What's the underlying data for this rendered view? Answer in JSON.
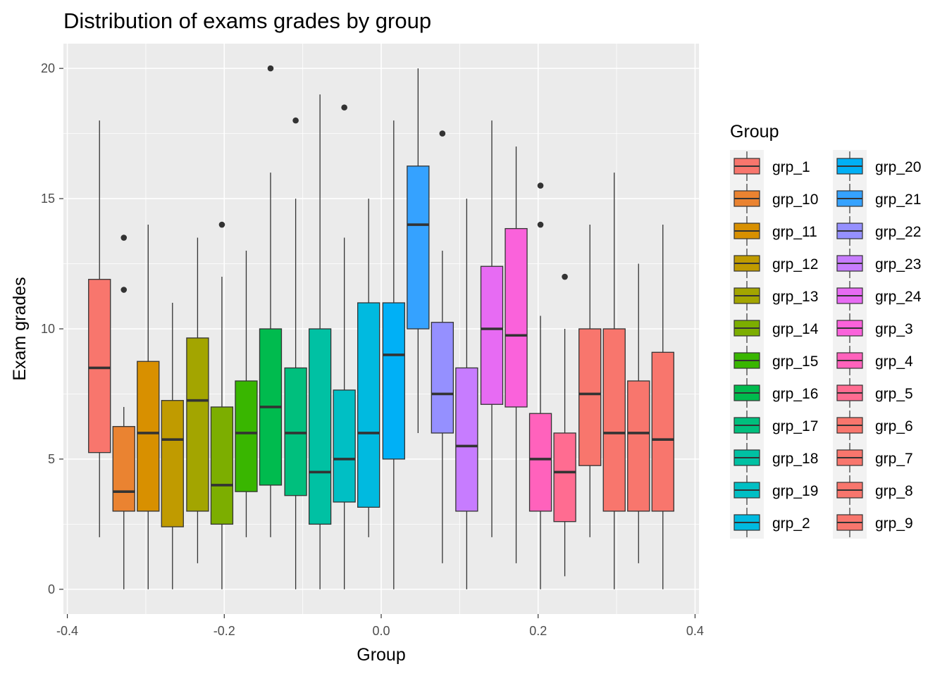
{
  "chart_data": {
    "type": "boxplot",
    "title": "Distribution of exams grades by group",
    "xlabel": "Group",
    "ylabel": "Exam grades",
    "xlim": [
      -0.405,
      0.405
    ],
    "ylim": [
      -0.95,
      20.95
    ],
    "x_ticks": [
      -0.4,
      -0.2,
      0.0,
      0.2,
      0.4
    ],
    "x_tick_labels": [
      "-0.4",
      "-0.2",
      "0.0",
      "0.2",
      "0.4"
    ],
    "y_ticks": [
      0,
      5,
      10,
      15,
      20
    ],
    "y_tick_labels": [
      "0",
      "5",
      "10",
      "15",
      "20"
    ],
    "grid": true,
    "legend": {
      "title": "Group",
      "position": "right",
      "columns": 2
    },
    "series": [
      {
        "name": "grp_1",
        "x": -0.359,
        "min": 2,
        "q1": 5.25,
        "median": 8.5,
        "q3": 11.9,
        "max": 18,
        "outliers": [],
        "color": "#F8766D"
      },
      {
        "name": "grp_10",
        "x": -0.328,
        "min": 0,
        "q1": 3,
        "median": 3.75,
        "q3": 6.25,
        "max": 7,
        "outliers": [
          11.5,
          13.5
        ],
        "color": "#EA8331"
      },
      {
        "name": "grp_11",
        "x": -0.297,
        "min": 0,
        "q1": 3,
        "median": 6,
        "q3": 8.75,
        "max": 14,
        "outliers": [],
        "color": "#D89000"
      },
      {
        "name": "grp_12",
        "x": -0.266,
        "min": 0,
        "q1": 2.4,
        "median": 5.75,
        "q3": 7.25,
        "max": 11,
        "outliers": [],
        "color": "#C09B00"
      },
      {
        "name": "grp_13",
        "x": -0.234,
        "min": 1,
        "q1": 3,
        "median": 7.25,
        "q3": 9.65,
        "max": 13.5,
        "outliers": [],
        "color": "#A3A500"
      },
      {
        "name": "grp_14",
        "x": -0.203,
        "min": 0,
        "q1": 2.5,
        "median": 4,
        "q3": 7,
        "max": 12,
        "outliers": [
          14
        ],
        "color": "#7CAE00"
      },
      {
        "name": "grp_15",
        "x": -0.172,
        "min": 2,
        "q1": 3.75,
        "median": 6,
        "q3": 8,
        "max": 13,
        "outliers": [],
        "color": "#39B600"
      },
      {
        "name": "grp_16",
        "x": -0.141,
        "min": 2,
        "q1": 4,
        "median": 7,
        "q3": 10,
        "max": 16,
        "outliers": [
          20
        ],
        "color": "#00BB4E"
      },
      {
        "name": "grp_17",
        "x": -0.109,
        "min": 0,
        "q1": 3.6,
        "median": 6,
        "q3": 8.5,
        "max": 15,
        "outliers": [
          18
        ],
        "color": "#00BF7D"
      },
      {
        "name": "grp_18",
        "x": -0.078,
        "min": 0,
        "q1": 2.5,
        "median": 4.5,
        "q3": 10,
        "max": 19,
        "outliers": [],
        "color": "#00C1A3"
      },
      {
        "name": "grp_19",
        "x": -0.047,
        "min": 0,
        "q1": 3.35,
        "median": 5,
        "q3": 7.65,
        "max": 13.5,
        "outliers": [
          18.5
        ],
        "color": "#00BFC4"
      },
      {
        "name": "grp_2",
        "x": -0.016,
        "min": 2,
        "q1": 3.15,
        "median": 6,
        "q3": 11,
        "max": 15,
        "outliers": [],
        "color": "#00BAE0"
      },
      {
        "name": "grp_20",
        "x": 0.016,
        "min": 0,
        "q1": 5,
        "median": 9,
        "q3": 11,
        "max": 18,
        "outliers": [],
        "color": "#00B0F6"
      },
      {
        "name": "grp_21",
        "x": 0.047,
        "min": 6,
        "q1": 10,
        "median": 14,
        "q3": 16.25,
        "max": 20,
        "outliers": [],
        "color": "#35A2FF"
      },
      {
        "name": "grp_22",
        "x": 0.078,
        "min": 1,
        "q1": 6,
        "median": 7.5,
        "q3": 10.25,
        "max": 13,
        "outliers": [
          17.5
        ],
        "color": "#9590FF"
      },
      {
        "name": "grp_23",
        "x": 0.109,
        "min": 0,
        "q1": 3,
        "median": 5.5,
        "q3": 8.5,
        "max": 15,
        "outliers": [],
        "color": "#C77CFF"
      },
      {
        "name": "grp_24",
        "x": 0.141,
        "min": 2,
        "q1": 7.1,
        "median": 10,
        "q3": 12.4,
        "max": 18,
        "outliers": [],
        "color": "#E76BF3"
      },
      {
        "name": "grp_3",
        "x": 0.172,
        "min": 1,
        "q1": 7,
        "median": 9.75,
        "q3": 13.85,
        "max": 17,
        "outliers": [],
        "color": "#FA62DB"
      },
      {
        "name": "grp_4",
        "x": 0.203,
        "min": 0,
        "q1": 3,
        "median": 5,
        "q3": 6.75,
        "max": 10.5,
        "outliers": [
          14,
          15.5
        ],
        "color": "#FF62BC"
      },
      {
        "name": "grp_5",
        "x": 0.234,
        "min": 0.5,
        "q1": 2.6,
        "median": 4.5,
        "q3": 6,
        "max": 10,
        "outliers": [
          12
        ],
        "color": "#FF6C91"
      },
      {
        "name": "grp_6",
        "x": 0.266,
        "min": 2,
        "q1": 4.75,
        "median": 7.5,
        "q3": 10,
        "max": 14,
        "outliers": [],
        "color": "#F8766D"
      },
      {
        "name": "grp_7",
        "x": 0.297,
        "min": 0,
        "q1": 3,
        "median": 6,
        "q3": 10,
        "max": 16,
        "outliers": [],
        "color": "#F8766D"
      },
      {
        "name": "grp_8",
        "x": 0.328,
        "min": 1,
        "q1": 3,
        "median": 6,
        "q3": 8,
        "max": 12.5,
        "outliers": [],
        "color": "#F8766D"
      },
      {
        "name": "grp_9",
        "x": 0.359,
        "min": 0,
        "q1": 3,
        "median": 5.75,
        "q3": 9.1,
        "max": 14,
        "outliers": [],
        "color": "#F8766D"
      }
    ]
  }
}
